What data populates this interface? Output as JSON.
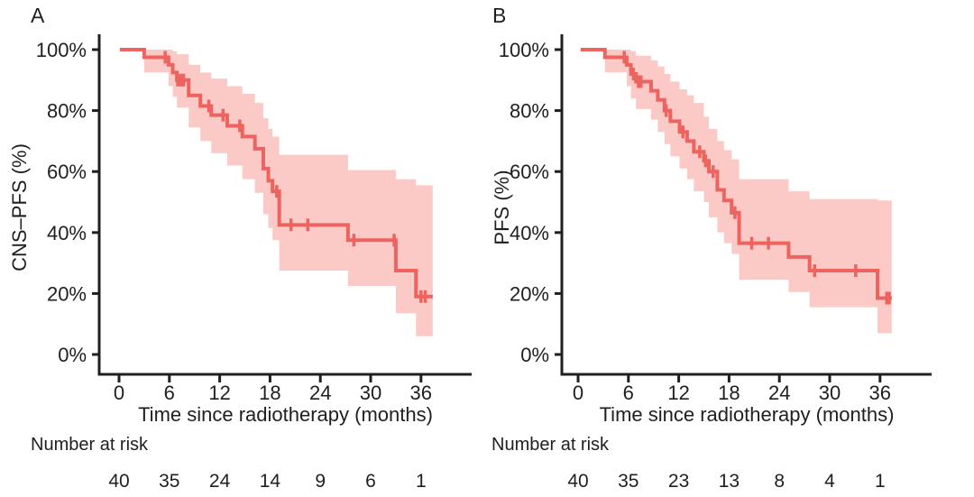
{
  "shared": {
    "x_axis_label": "Time since radiotherapy (months)",
    "number_at_risk_label": "Number at risk",
    "colors": {
      "curve": "#ec635f",
      "band": "#fbcac6",
      "axis": "#1f1f1f",
      "text": "#1f1f1f"
    }
  },
  "chart_data": [
    {
      "type": "line",
      "subtype": "kaplan-meier-with-confidence-band",
      "panel_label": "A",
      "ylabel": "CNS–PFS (%)",
      "xlabel": "Time since radiotherapy (months)",
      "ylim": [
        0,
        100
      ],
      "xlim": [
        -2,
        42
      ],
      "x_ticks": [
        0,
        6,
        12,
        18,
        24,
        30,
        36
      ],
      "y_ticks_pct": [
        0,
        20,
        40,
        60,
        80,
        100
      ],
      "y_tick_labels": [
        "0%",
        "20%",
        "40%",
        "60%",
        "80%",
        "100%"
      ],
      "number_at_risk": {
        "times": [
          0,
          6,
          12,
          18,
          24,
          30,
          36
        ],
        "counts": [
          40,
          35,
          24,
          14,
          9,
          6,
          1
        ]
      },
      "survival_steps": [
        {
          "start": 0.1,
          "end": 3.0,
          "surv": 100,
          "lo": 100,
          "hi": 100
        },
        {
          "start": 3.0,
          "end": 5.9,
          "surv": 97.5,
          "lo": 92.5,
          "hi": 100
        },
        {
          "start": 5.9,
          "end": 6.4,
          "surv": 95,
          "lo": 88,
          "hi": 100
        },
        {
          "start": 6.4,
          "end": 6.9,
          "surv": 92.5,
          "lo": 84.5,
          "hi": 99.5
        },
        {
          "start": 6.9,
          "end": 8.3,
          "surv": 90,
          "lo": 81,
          "hi": 98.5
        },
        {
          "start": 8.3,
          "end": 9.7,
          "surv": 85,
          "lo": 74.5,
          "hi": 95
        },
        {
          "start": 9.7,
          "end": 11.0,
          "surv": 81.5,
          "lo": 70,
          "hi": 92.5
        },
        {
          "start": 11.0,
          "end": 12.9,
          "surv": 78.5,
          "lo": 66,
          "hi": 90.5
        },
        {
          "start": 12.9,
          "end": 14.7,
          "surv": 75,
          "lo": 62,
          "hi": 88
        },
        {
          "start": 14.7,
          "end": 16.2,
          "surv": 71.5,
          "lo": 57.5,
          "hi": 85.5
        },
        {
          "start": 16.2,
          "end": 17.2,
          "surv": 67.5,
          "lo": 53,
          "hi": 82.5
        },
        {
          "start": 17.2,
          "end": 17.8,
          "surv": 61,
          "lo": 46,
          "hi": 77.5
        },
        {
          "start": 17.8,
          "end": 18.3,
          "surv": 57,
          "lo": 41.5,
          "hi": 74
        },
        {
          "start": 18.3,
          "end": 19.1,
          "surv": 53.5,
          "lo": 37.5,
          "hi": 71.5
        },
        {
          "start": 19.1,
          "end": 27.3,
          "surv": 42.5,
          "lo": 27.5,
          "hi": 65.5
        },
        {
          "start": 27.3,
          "end": 33.0,
          "surv": 37.5,
          "lo": 22.5,
          "hi": 60.5
        },
        {
          "start": 33.0,
          "end": 35.4,
          "surv": 27.5,
          "lo": 13.5,
          "hi": 57.5
        },
        {
          "start": 35.4,
          "end": 37.4,
          "surv": 19,
          "lo": 6,
          "hi": 55.5
        }
      ],
      "censor_marks": [
        {
          "t": 5.5,
          "s": 97.5
        },
        {
          "t": 7.0,
          "s": 90
        },
        {
          "t": 7.35,
          "s": 90
        },
        {
          "t": 7.7,
          "s": 90
        },
        {
          "t": 10.7,
          "s": 81.5
        },
        {
          "t": 12.4,
          "s": 78.5
        },
        {
          "t": 14.4,
          "s": 75
        },
        {
          "t": 18.8,
          "s": 53.5
        },
        {
          "t": 20.5,
          "s": 42.5
        },
        {
          "t": 22.5,
          "s": 42.5
        },
        {
          "t": 28.0,
          "s": 37.5
        },
        {
          "t": 32.8,
          "s": 37.5
        },
        {
          "t": 36.0,
          "s": 19
        },
        {
          "t": 36.5,
          "s": 19
        }
      ]
    },
    {
      "type": "line",
      "subtype": "kaplan-meier-with-confidence-band",
      "panel_label": "B",
      "ylabel": "PFS (%)",
      "xlabel": "Time since radiotherapy (months)",
      "ylim": [
        0,
        100
      ],
      "xlim": [
        -2,
        42
      ],
      "x_ticks": [
        0,
        6,
        12,
        18,
        24,
        30,
        36
      ],
      "y_ticks_pct": [
        0,
        20,
        40,
        60,
        80,
        100
      ],
      "y_tick_labels": [
        "0%",
        "20%",
        "40%",
        "60%",
        "80%",
        "100%"
      ],
      "number_at_risk": {
        "times": [
          0,
          6,
          12,
          18,
          24,
          30,
          36
        ],
        "counts": [
          40,
          35,
          23,
          13,
          8,
          4,
          1
        ]
      },
      "survival_steps": [
        {
          "start": 0.3,
          "end": 3.2,
          "surv": 100,
          "lo": 100,
          "hi": 100
        },
        {
          "start": 3.2,
          "end": 5.8,
          "surv": 97.5,
          "lo": 92.5,
          "hi": 100
        },
        {
          "start": 5.8,
          "end": 6.3,
          "surv": 95,
          "lo": 88,
          "hi": 100
        },
        {
          "start": 6.3,
          "end": 6.9,
          "surv": 92,
          "lo": 84,
          "hi": 99.5
        },
        {
          "start": 6.9,
          "end": 8.7,
          "surv": 89.5,
          "lo": 80.5,
          "hi": 98
        },
        {
          "start": 8.7,
          "end": 9.5,
          "surv": 86.5,
          "lo": 77,
          "hi": 96.5
        },
        {
          "start": 9.5,
          "end": 10.3,
          "surv": 83.5,
          "lo": 73,
          "hi": 94.5
        },
        {
          "start": 10.3,
          "end": 11.0,
          "surv": 80,
          "lo": 69,
          "hi": 92
        },
        {
          "start": 11.0,
          "end": 12.1,
          "surv": 76.5,
          "lo": 65,
          "hi": 89.5
        },
        {
          "start": 12.1,
          "end": 13.0,
          "surv": 73,
          "lo": 61,
          "hi": 87
        },
        {
          "start": 13.0,
          "end": 13.8,
          "surv": 70,
          "lo": 57.5,
          "hi": 85
        },
        {
          "start": 13.8,
          "end": 15.0,
          "surv": 66.5,
          "lo": 53.5,
          "hi": 82.5
        },
        {
          "start": 15.0,
          "end": 15.6,
          "surv": 63.5,
          "lo": 50,
          "hi": 78
        },
        {
          "start": 15.6,
          "end": 16.6,
          "surv": 60,
          "lo": 45,
          "hi": 74
        },
        {
          "start": 16.6,
          "end": 17.4,
          "surv": 54,
          "lo": 40,
          "hi": 70
        },
        {
          "start": 17.4,
          "end": 18.3,
          "surv": 50.5,
          "lo": 36.5,
          "hi": 67
        },
        {
          "start": 18.3,
          "end": 19.2,
          "surv": 46.5,
          "lo": 33,
          "hi": 64
        },
        {
          "start": 19.2,
          "end": 25.1,
          "surv": 36.5,
          "lo": 24.5,
          "hi": 57.5
        },
        {
          "start": 25.1,
          "end": 27.6,
          "surv": 32,
          "lo": 20.5,
          "hi": 53.5
        },
        {
          "start": 27.6,
          "end": 35.7,
          "surv": 27.5,
          "lo": 15.5,
          "hi": 51
        },
        {
          "start": 35.7,
          "end": 37.4,
          "surv": 18.5,
          "lo": 7,
          "hi": 50.5
        }
      ],
      "censor_marks": [
        {
          "t": 5.5,
          "s": 97.5
        },
        {
          "t": 6.6,
          "s": 92
        },
        {
          "t": 7.2,
          "s": 89.5
        },
        {
          "t": 7.5,
          "s": 89.5
        },
        {
          "t": 10.5,
          "s": 80
        },
        {
          "t": 12.5,
          "s": 73
        },
        {
          "t": 14.5,
          "s": 66.5
        },
        {
          "t": 15.2,
          "s": 63.5
        },
        {
          "t": 16.1,
          "s": 60
        },
        {
          "t": 18.7,
          "s": 46.5
        },
        {
          "t": 20.7,
          "s": 36.5
        },
        {
          "t": 22.7,
          "s": 36.5
        },
        {
          "t": 28.2,
          "s": 27.5
        },
        {
          "t": 33.1,
          "s": 27.5
        },
        {
          "t": 36.8,
          "s": 18.5
        },
        {
          "t": 37.1,
          "s": 18.5
        }
      ]
    }
  ]
}
